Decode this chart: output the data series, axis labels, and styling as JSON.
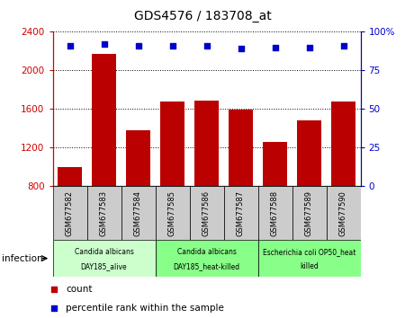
{
  "title": "GDS4576 / 183708_at",
  "samples": [
    "GSM677582",
    "GSM677583",
    "GSM677584",
    "GSM677585",
    "GSM677586",
    "GSM677587",
    "GSM677588",
    "GSM677589",
    "GSM677590"
  ],
  "counts": [
    1000,
    2175,
    1380,
    1680,
    1690,
    1590,
    1260,
    1480,
    1680
  ],
  "percentile_ranks": [
    91,
    92,
    91,
    91,
    91,
    89,
    90,
    90,
    91
  ],
  "ylim_left": [
    800,
    2400
  ],
  "ylim_right": [
    0,
    100
  ],
  "yticks_left": [
    800,
    1200,
    1600,
    2000,
    2400
  ],
  "yticks_right": [
    0,
    25,
    50,
    75,
    100
  ],
  "bar_color": "#bb0000",
  "dot_color": "#0000cc",
  "bar_bottom": 800,
  "groups": [
    {
      "label": "Candida albicans\nDAY185_alive",
      "start": 0,
      "end": 3,
      "color": "#ccffcc"
    },
    {
      "label": "Candida albicans\nDAY185_heat-killed",
      "start": 3,
      "end": 6,
      "color": "#88ff88"
    },
    {
      "label": "Escherichia coli OP50_heat\nkilled",
      "start": 6,
      "end": 9,
      "color": "#88ff88"
    }
  ],
  "infection_label": "infection",
  "legend_count_label": "count",
  "legend_pct_label": "percentile rank within the sample",
  "bg_color": "#ffffff",
  "sample_bg": "#cccccc",
  "left_ycolor": "#cc0000",
  "right_ycolor": "#0000cc"
}
